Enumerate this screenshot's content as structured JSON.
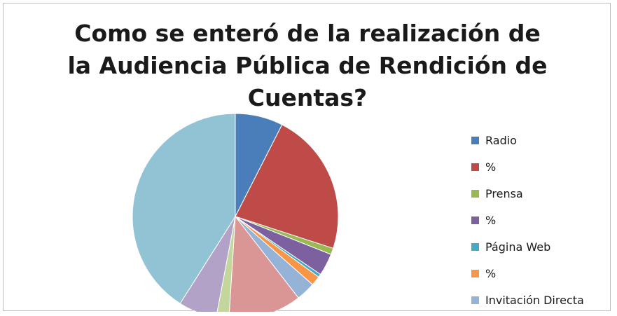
{
  "chart_data": {
    "type": "pie",
    "title_lines": [
      "Como se enteró de la realización de",
      "la Audiencia Pública de Rendición de",
      "Cuentas?"
    ],
    "legend_placement": "right",
    "legend": [
      {
        "label": "Radio",
        "color": "#4a7ebb"
      },
      {
        "label": "%",
        "color": "#be4b48"
      },
      {
        "label": "Prensa",
        "color": "#98b954"
      },
      {
        "label": "%",
        "color": "#7d60a0"
      },
      {
        "label": "Página Web",
        "color": "#46aac5"
      },
      {
        "label": "%",
        "color": "#f79646"
      },
      {
        "label": "Invitación Directa",
        "color": "#95b3d7"
      }
    ],
    "slices": [
      {
        "value": 7.5,
        "color": "#4a7ebb"
      },
      {
        "value": 22.5,
        "color": "#be4b48"
      },
      {
        "value": 1.0,
        "color": "#98b954"
      },
      {
        "value": 3.5,
        "color": "#7d60a0"
      },
      {
        "value": 0.5,
        "color": "#46aac5"
      },
      {
        "value": 1.5,
        "color": "#f79646"
      },
      {
        "value": 3.0,
        "color": "#95b3d7"
      },
      {
        "value": 11.5,
        "color": "#d99694"
      },
      {
        "value": 2.0,
        "color": "#c3d69b"
      },
      {
        "value": 6.0,
        "color": "#b3a2c7"
      },
      {
        "value": 41.0,
        "color": "#92c3d4"
      }
    ]
  }
}
